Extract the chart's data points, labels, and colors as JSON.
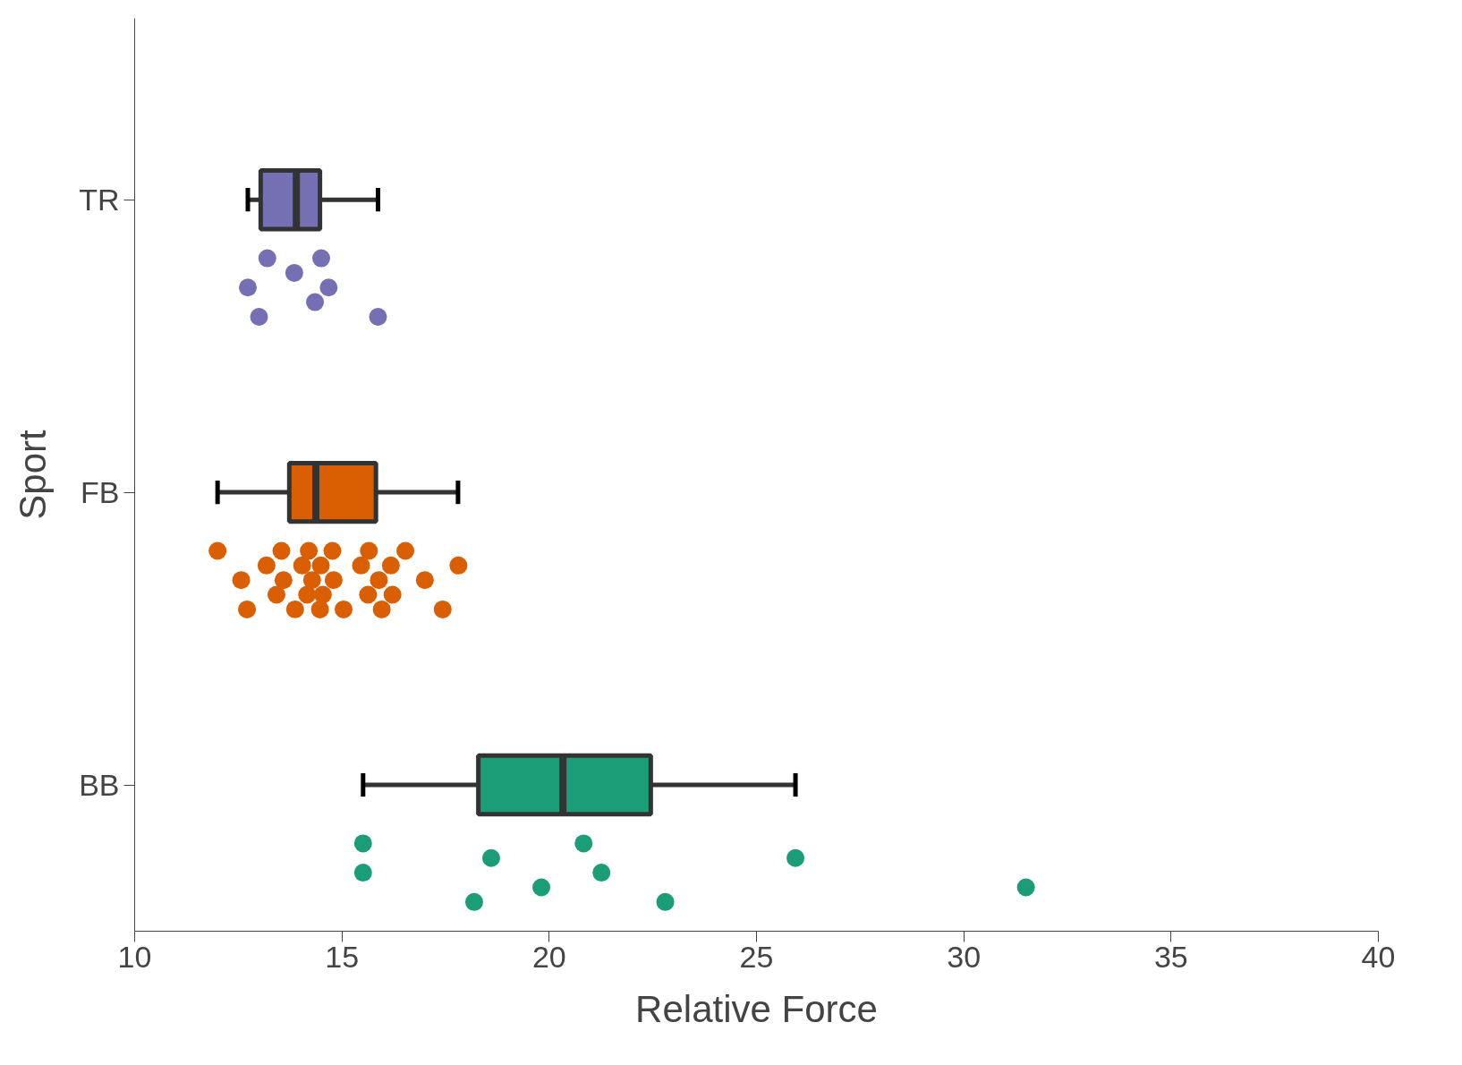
{
  "chart_data": {
    "type": "box",
    "orientation": "horizontal",
    "xlabel": "Relative Force",
    "ylabel": "Sport",
    "categories": [
      "TR",
      "FB",
      "BB"
    ],
    "colors": [
      "#7570b3",
      "#d95f02",
      "#1b9e77"
    ],
    "boxes": [
      {
        "low": 12.73,
        "q1": 13.04,
        "median": 13.9,
        "q3": 14.47,
        "high": 15.87
      },
      {
        "low": 12.0,
        "q1": 13.73,
        "median": 14.37,
        "q3": 15.82,
        "high": 17.8
      },
      {
        "low": 15.51,
        "q1": 18.29,
        "median": 20.33,
        "q3": 22.45,
        "high": 25.94
      }
    ],
    "marker": "circle",
    "series": [
      {
        "type": "scatter",
        "color": "#7570b3",
        "x": [
          "TR",
          "TR",
          "TR",
          "TR",
          "TR",
          "TR",
          "TR",
          "TR"
        ],
        "values": [
          13.2,
          12.73,
          13.0,
          13.85,
          14.35,
          14.5,
          14.68,
          15.87
        ]
      },
      {
        "type": "scatter",
        "color": "#d95f02",
        "x": [
          "FB",
          "FB",
          "FB",
          "FB",
          "FB",
          "FB",
          "FB",
          "FB",
          "FB",
          "FB",
          "FB",
          "FB",
          "FB",
          "FB",
          "FB",
          "FB",
          "FB",
          "FB",
          "FB",
          "FB",
          "FB",
          "FB",
          "FB",
          "FB",
          "FB",
          "FB",
          "FB",
          "FB",
          "FB"
        ],
        "values": [
          12.0,
          12.57,
          12.71,
          13.18,
          13.42,
          13.54,
          13.59,
          13.87,
          14.04,
          14.16,
          14.2,
          14.28,
          14.47,
          14.49,
          14.54,
          14.77,
          14.8,
          15.04,
          15.46,
          15.63,
          15.65,
          15.89,
          15.96,
          16.18,
          16.22,
          16.53,
          17.0,
          17.43,
          17.81
        ]
      },
      {
        "type": "scatter",
        "color": "#1b9e77",
        "x": [
          "BB",
          "BB",
          "BB",
          "BB",
          "BB",
          "BB",
          "BB",
          "BB",
          "BB",
          "BB"
        ],
        "values": [
          15.51,
          15.51,
          18.19,
          18.6,
          19.81,
          20.83,
          21.26,
          22.8,
          25.94,
          31.5
        ]
      }
    ],
    "xlim": [
      10,
      40
    ],
    "xticks": [
      10,
      15,
      20,
      25,
      30,
      35,
      40
    ]
  }
}
